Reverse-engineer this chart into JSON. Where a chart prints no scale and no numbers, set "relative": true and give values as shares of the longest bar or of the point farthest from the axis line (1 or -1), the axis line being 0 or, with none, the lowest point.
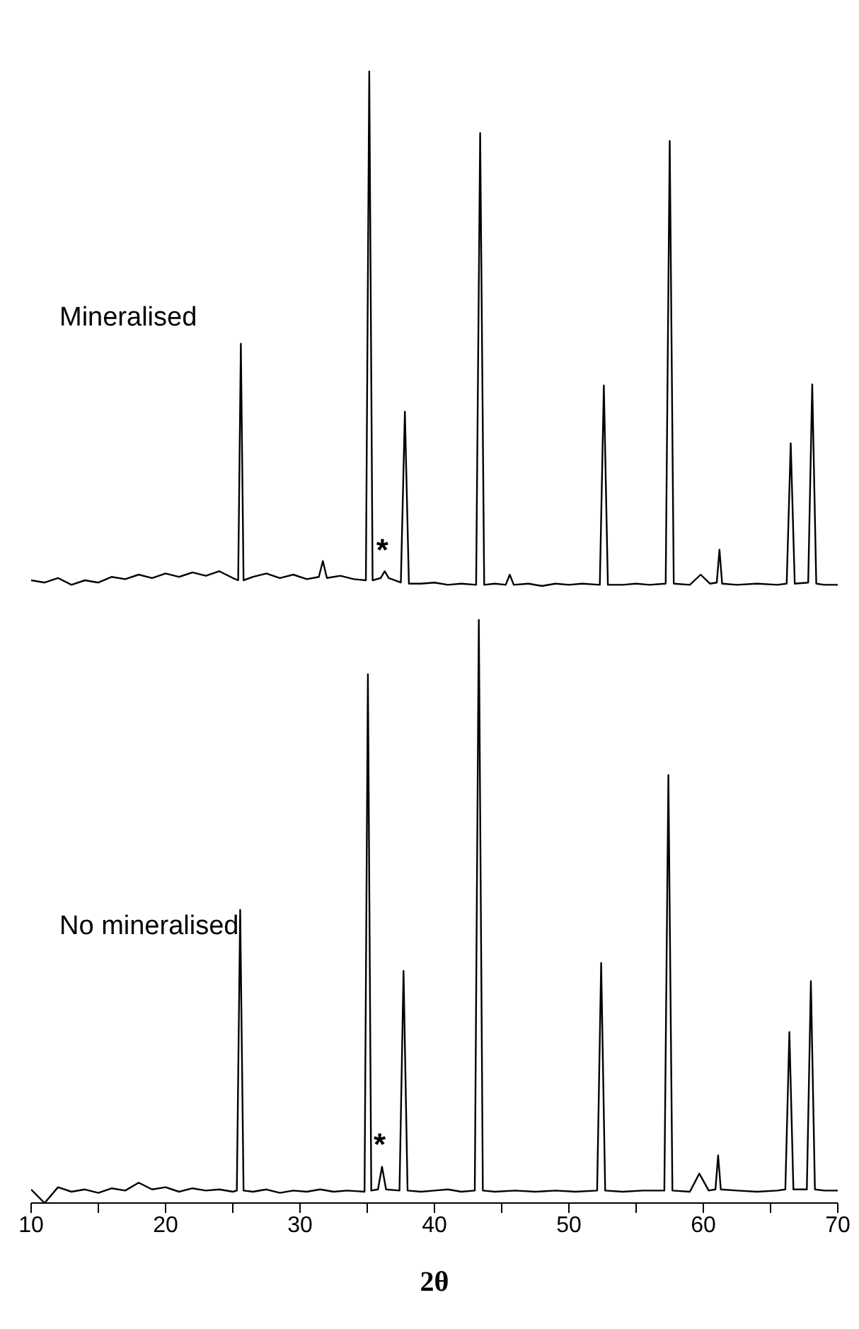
{
  "chart_data": {
    "type": "line",
    "relative": true,
    "xlabel": "2θ",
    "xlim": [
      10,
      70
    ],
    "xticks": [
      10,
      {
        "value": 15,
        "label": null
      },
      20,
      {
        "value": 25,
        "label": null
      },
      30,
      {
        "value": 35,
        "label": null
      },
      40,
      {
        "value": 45,
        "label": null
      },
      50,
      {
        "value": 55,
        "label": null
      },
      60,
      {
        "value": 65,
        "label": null
      },
      70
    ],
    "tick_labels": "x",
    "marker": "none",
    "line_style": "solid",
    "series": [
      {
        "name": "Mineralised",
        "color": "#000000",
        "x": [
          10,
          11,
          12,
          13,
          14,
          15,
          16,
          17,
          18,
          19,
          20,
          21,
          22,
          23,
          24,
          25,
          25.4,
          25.6,
          25.8,
          26.5,
          27.5,
          28.5,
          29.5,
          30.5,
          31.4,
          31.7,
          32,
          33,
          34,
          34.9,
          35.15,
          35.4,
          36,
          36.3,
          36.6,
          37.5,
          37.8,
          38.1,
          39,
          40,
          41,
          42,
          43.1,
          43.4,
          43.7,
          44.5,
          45.3,
          45.6,
          45.9,
          47,
          48,
          49,
          50,
          51,
          52.3,
          52.6,
          52.9,
          54,
          55,
          56,
          57.2,
          57.5,
          57.8,
          59,
          59.8,
          60.5,
          61,
          61.2,
          61.4,
          62.5,
          64,
          65.5,
          66.2,
          66.5,
          66.8,
          67.8,
          68.1,
          68.4,
          69,
          70
        ],
        "values": [
          0.55,
          0.548,
          0.552,
          0.546,
          0.55,
          0.548,
          0.553,
          0.551,
          0.555,
          0.552,
          0.556,
          0.553,
          0.557,
          0.554,
          0.558,
          0.552,
          0.55,
          0.759,
          0.55,
          0.553,
          0.556,
          0.552,
          0.555,
          0.551,
          0.553,
          0.567,
          0.552,
          0.554,
          0.551,
          0.55,
          1.0,
          0.55,
          0.552,
          0.558,
          0.552,
          0.548,
          0.699,
          0.547,
          0.547,
          0.548,
          0.546,
          0.547,
          0.546,
          0.945,
          0.546,
          0.547,
          0.546,
          0.555,
          0.546,
          0.547,
          0.545,
          0.547,
          0.546,
          0.547,
          0.546,
          0.722,
          0.546,
          0.546,
          0.547,
          0.546,
          0.547,
          0.938,
          0.547,
          0.546,
          0.555,
          0.547,
          0.548,
          0.577,
          0.547,
          0.546,
          0.547,
          0.546,
          0.547,
          0.671,
          0.547,
          0.548,
          0.723,
          0.547,
          0.546,
          0.546
        ]
      },
      {
        "name": "No mineralised",
        "color": "#000000",
        "x": [
          10,
          11,
          12,
          13,
          14,
          15,
          16,
          17,
          18,
          19,
          20,
          21,
          22,
          23,
          24,
          25,
          25.3,
          25.55,
          25.8,
          26.5,
          27.5,
          28.5,
          29.5,
          30.5,
          31.5,
          32.5,
          33.5,
          34.8,
          35.05,
          35.3,
          35.8,
          36.1,
          36.4,
          37.4,
          37.7,
          38,
          39,
          40,
          41,
          42,
          43,
          43.3,
          43.6,
          44.5,
          46,
          47.5,
          49,
          50.5,
          52.1,
          52.4,
          52.7,
          54,
          55.5,
          57.1,
          57.4,
          57.7,
          59,
          59.7,
          60.4,
          60.9,
          61.1,
          61.3,
          62.5,
          64,
          65.5,
          66.1,
          66.4,
          66.7,
          67.7,
          68,
          68.3,
          69,
          70
        ],
        "values": [
          0.012,
          0,
          0.014,
          0.01,
          0.012,
          0.009,
          0.013,
          0.011,
          0.018,
          0.012,
          0.014,
          0.01,
          0.013,
          0.011,
          0.012,
          0.01,
          0.011,
          0.259,
          0.011,
          0.01,
          0.012,
          0.009,
          0.011,
          0.01,
          0.012,
          0.01,
          0.011,
          0.01,
          0.467,
          0.011,
          0.012,
          0.032,
          0.012,
          0.011,
          0.205,
          0.011,
          0.01,
          0.011,
          0.012,
          0.01,
          0.011,
          0.515,
          0.011,
          0.01,
          0.011,
          0.01,
          0.011,
          0.01,
          0.011,
          0.212,
          0.011,
          0.01,
          0.011,
          0.011,
          0.378,
          0.011,
          0.01,
          0.026,
          0.011,
          0.012,
          0.042,
          0.012,
          0.011,
          0.01,
          0.011,
          0.012,
          0.151,
          0.012,
          0.012,
          0.196,
          0.012,
          0.011,
          0.011
        ]
      }
    ],
    "annotations": [
      {
        "text": "*",
        "x": 36.3,
        "y": 0.558
      },
      {
        "text": "*",
        "x": 36.1,
        "y": 0.032
      }
    ]
  }
}
